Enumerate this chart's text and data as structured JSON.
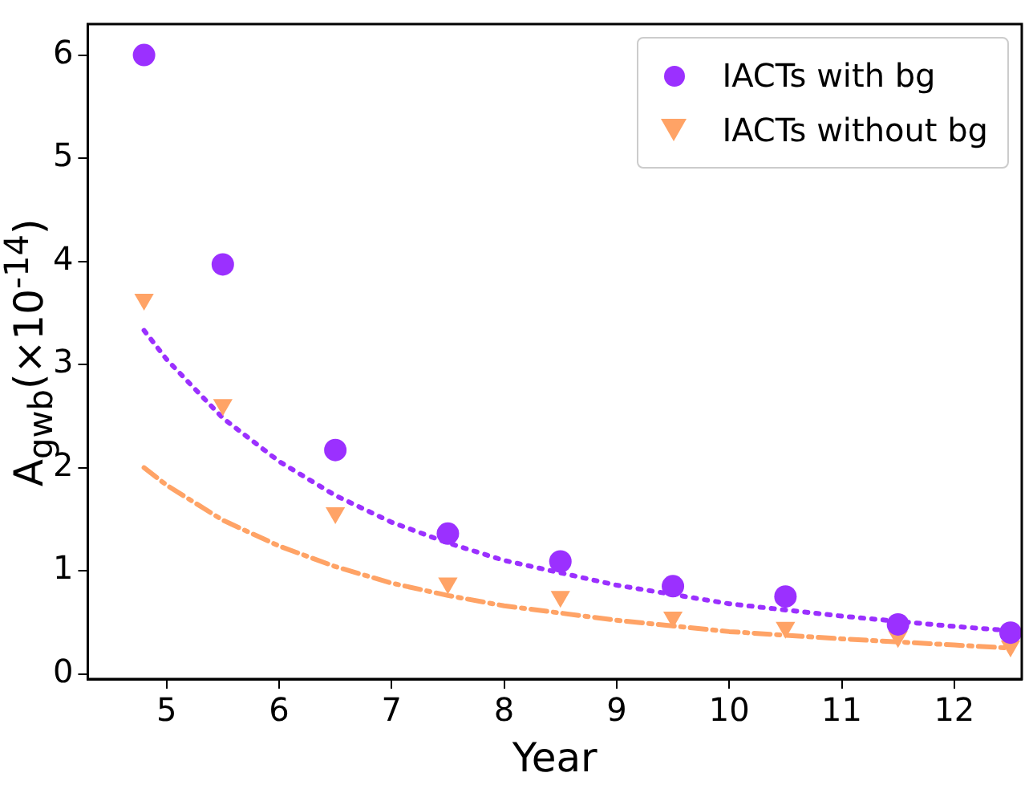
{
  "chart_data": {
    "type": "scatter",
    "xlabel": "Year",
    "ylabel": "A$_{gwb}$(×10$^{-14}$)",
    "x": [
      4.8,
      5.5,
      6.5,
      7.5,
      8.5,
      9.5,
      10.5,
      11.5,
      12.5
    ],
    "series": [
      {
        "name": "IACTs with bg",
        "color": "#9b30ff",
        "marker": "circle",
        "values": [
          6.0,
          3.97,
          2.17,
          1.36,
          1.09,
          0.85,
          0.75,
          0.48,
          0.4
        ]
      },
      {
        "name": "IACTs without bg",
        "color": "#ffa366",
        "marker": "triangle",
        "values": [
          3.63,
          2.61,
          1.56,
          0.88,
          0.75,
          0.55,
          0.45,
          0.36,
          0.27
        ]
      },
      {
        "type": "line",
        "color": "#9b30ff",
        "line_style": "dotted",
        "x": [
          4.8,
          5,
          5.5,
          6,
          6.5,
          7,
          7.5,
          8,
          9,
          10,
          11,
          12,
          12.5
        ],
        "values": [
          3.33,
          3.05,
          2.48,
          2.06,
          1.73,
          1.47,
          1.27,
          1.1,
          0.86,
          0.68,
          0.56,
          0.46,
          0.42
        ]
      },
      {
        "type": "line",
        "color": "#ffa366",
        "line_style": "dashdot",
        "x": [
          4.8,
          5,
          5.5,
          6,
          6.5,
          7,
          7.5,
          8,
          9,
          10,
          11,
          12,
          12.5
        ],
        "values": [
          2.0,
          1.83,
          1.49,
          1.24,
          1.04,
          0.88,
          0.76,
          0.66,
          0.52,
          0.41,
          0.34,
          0.28,
          0.25
        ]
      }
    ],
    "xlim": [
      4.3,
      12.6
    ],
    "ylim": [
      -0.05,
      6.3
    ],
    "xticks": [
      5,
      6,
      7,
      8,
      9,
      10,
      11,
      12
    ],
    "yticks": [
      0,
      1,
      2,
      3,
      4,
      5,
      6
    ],
    "grid": false,
    "legend": "top right"
  }
}
